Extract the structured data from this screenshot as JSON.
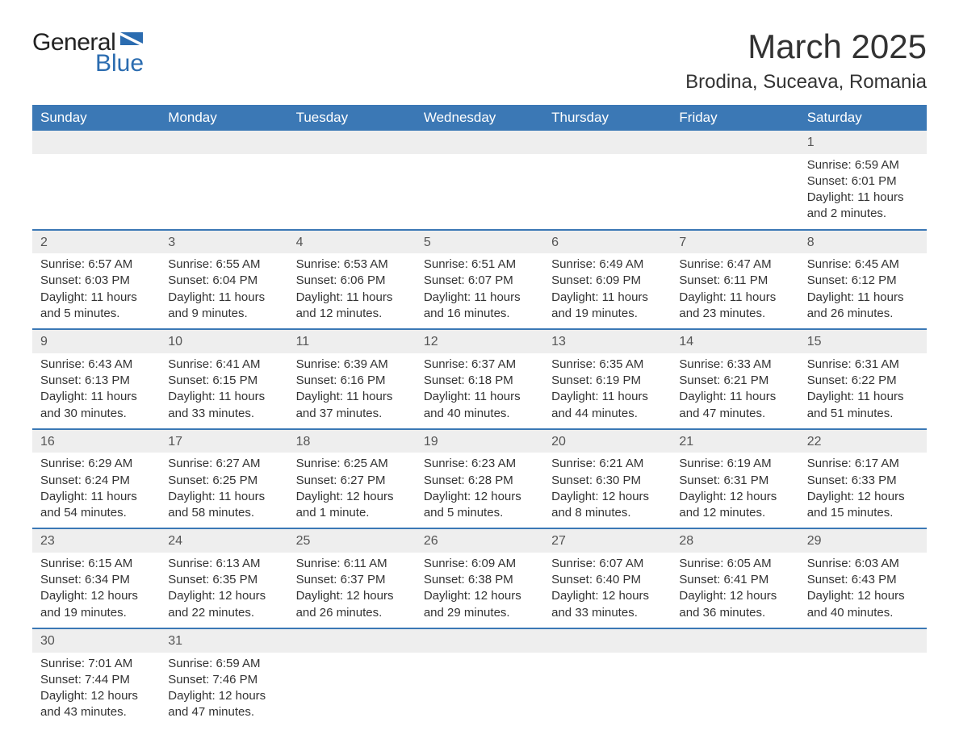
{
  "logo": {
    "text_general": "General",
    "text_blue": "Blue",
    "shape_color": "#2b6cb0"
  },
  "title": "March 2025",
  "location": "Brodina, Suceava, Romania",
  "colors": {
    "header_bg": "#3b78b5",
    "header_text": "#ffffff",
    "daynum_bg": "#eeeeee",
    "row_border": "#3b78b5",
    "body_text": "#333333"
  },
  "day_headers": [
    "Sunday",
    "Monday",
    "Tuesday",
    "Wednesday",
    "Thursday",
    "Friday",
    "Saturday"
  ],
  "weeks": [
    [
      null,
      null,
      null,
      null,
      null,
      null,
      {
        "day": "1",
        "sunrise": "Sunrise: 6:59 AM",
        "sunset": "Sunset: 6:01 PM",
        "daylight": "Daylight: 11 hours and 2 minutes."
      }
    ],
    [
      {
        "day": "2",
        "sunrise": "Sunrise: 6:57 AM",
        "sunset": "Sunset: 6:03 PM",
        "daylight": "Daylight: 11 hours and 5 minutes."
      },
      {
        "day": "3",
        "sunrise": "Sunrise: 6:55 AM",
        "sunset": "Sunset: 6:04 PM",
        "daylight": "Daylight: 11 hours and 9 minutes."
      },
      {
        "day": "4",
        "sunrise": "Sunrise: 6:53 AM",
        "sunset": "Sunset: 6:06 PM",
        "daylight": "Daylight: 11 hours and 12 minutes."
      },
      {
        "day": "5",
        "sunrise": "Sunrise: 6:51 AM",
        "sunset": "Sunset: 6:07 PM",
        "daylight": "Daylight: 11 hours and 16 minutes."
      },
      {
        "day": "6",
        "sunrise": "Sunrise: 6:49 AM",
        "sunset": "Sunset: 6:09 PM",
        "daylight": "Daylight: 11 hours and 19 minutes."
      },
      {
        "day": "7",
        "sunrise": "Sunrise: 6:47 AM",
        "sunset": "Sunset: 6:11 PM",
        "daylight": "Daylight: 11 hours and 23 minutes."
      },
      {
        "day": "8",
        "sunrise": "Sunrise: 6:45 AM",
        "sunset": "Sunset: 6:12 PM",
        "daylight": "Daylight: 11 hours and 26 minutes."
      }
    ],
    [
      {
        "day": "9",
        "sunrise": "Sunrise: 6:43 AM",
        "sunset": "Sunset: 6:13 PM",
        "daylight": "Daylight: 11 hours and 30 minutes."
      },
      {
        "day": "10",
        "sunrise": "Sunrise: 6:41 AM",
        "sunset": "Sunset: 6:15 PM",
        "daylight": "Daylight: 11 hours and 33 minutes."
      },
      {
        "day": "11",
        "sunrise": "Sunrise: 6:39 AM",
        "sunset": "Sunset: 6:16 PM",
        "daylight": "Daylight: 11 hours and 37 minutes."
      },
      {
        "day": "12",
        "sunrise": "Sunrise: 6:37 AM",
        "sunset": "Sunset: 6:18 PM",
        "daylight": "Daylight: 11 hours and 40 minutes."
      },
      {
        "day": "13",
        "sunrise": "Sunrise: 6:35 AM",
        "sunset": "Sunset: 6:19 PM",
        "daylight": "Daylight: 11 hours and 44 minutes."
      },
      {
        "day": "14",
        "sunrise": "Sunrise: 6:33 AM",
        "sunset": "Sunset: 6:21 PM",
        "daylight": "Daylight: 11 hours and 47 minutes."
      },
      {
        "day": "15",
        "sunrise": "Sunrise: 6:31 AM",
        "sunset": "Sunset: 6:22 PM",
        "daylight": "Daylight: 11 hours and 51 minutes."
      }
    ],
    [
      {
        "day": "16",
        "sunrise": "Sunrise: 6:29 AM",
        "sunset": "Sunset: 6:24 PM",
        "daylight": "Daylight: 11 hours and 54 minutes."
      },
      {
        "day": "17",
        "sunrise": "Sunrise: 6:27 AM",
        "sunset": "Sunset: 6:25 PM",
        "daylight": "Daylight: 11 hours and 58 minutes."
      },
      {
        "day": "18",
        "sunrise": "Sunrise: 6:25 AM",
        "sunset": "Sunset: 6:27 PM",
        "daylight": "Daylight: 12 hours and 1 minute."
      },
      {
        "day": "19",
        "sunrise": "Sunrise: 6:23 AM",
        "sunset": "Sunset: 6:28 PM",
        "daylight": "Daylight: 12 hours and 5 minutes."
      },
      {
        "day": "20",
        "sunrise": "Sunrise: 6:21 AM",
        "sunset": "Sunset: 6:30 PM",
        "daylight": "Daylight: 12 hours and 8 minutes."
      },
      {
        "day": "21",
        "sunrise": "Sunrise: 6:19 AM",
        "sunset": "Sunset: 6:31 PM",
        "daylight": "Daylight: 12 hours and 12 minutes."
      },
      {
        "day": "22",
        "sunrise": "Sunrise: 6:17 AM",
        "sunset": "Sunset: 6:33 PM",
        "daylight": "Daylight: 12 hours and 15 minutes."
      }
    ],
    [
      {
        "day": "23",
        "sunrise": "Sunrise: 6:15 AM",
        "sunset": "Sunset: 6:34 PM",
        "daylight": "Daylight: 12 hours and 19 minutes."
      },
      {
        "day": "24",
        "sunrise": "Sunrise: 6:13 AM",
        "sunset": "Sunset: 6:35 PM",
        "daylight": "Daylight: 12 hours and 22 minutes."
      },
      {
        "day": "25",
        "sunrise": "Sunrise: 6:11 AM",
        "sunset": "Sunset: 6:37 PM",
        "daylight": "Daylight: 12 hours and 26 minutes."
      },
      {
        "day": "26",
        "sunrise": "Sunrise: 6:09 AM",
        "sunset": "Sunset: 6:38 PM",
        "daylight": "Daylight: 12 hours and 29 minutes."
      },
      {
        "day": "27",
        "sunrise": "Sunrise: 6:07 AM",
        "sunset": "Sunset: 6:40 PM",
        "daylight": "Daylight: 12 hours and 33 minutes."
      },
      {
        "day": "28",
        "sunrise": "Sunrise: 6:05 AM",
        "sunset": "Sunset: 6:41 PM",
        "daylight": "Daylight: 12 hours and 36 minutes."
      },
      {
        "day": "29",
        "sunrise": "Sunrise: 6:03 AM",
        "sunset": "Sunset: 6:43 PM",
        "daylight": "Daylight: 12 hours and 40 minutes."
      }
    ],
    [
      {
        "day": "30",
        "sunrise": "Sunrise: 7:01 AM",
        "sunset": "Sunset: 7:44 PM",
        "daylight": "Daylight: 12 hours and 43 minutes."
      },
      {
        "day": "31",
        "sunrise": "Sunrise: 6:59 AM",
        "sunset": "Sunset: 7:46 PM",
        "daylight": "Daylight: 12 hours and 47 minutes."
      },
      null,
      null,
      null,
      null,
      null
    ]
  ]
}
